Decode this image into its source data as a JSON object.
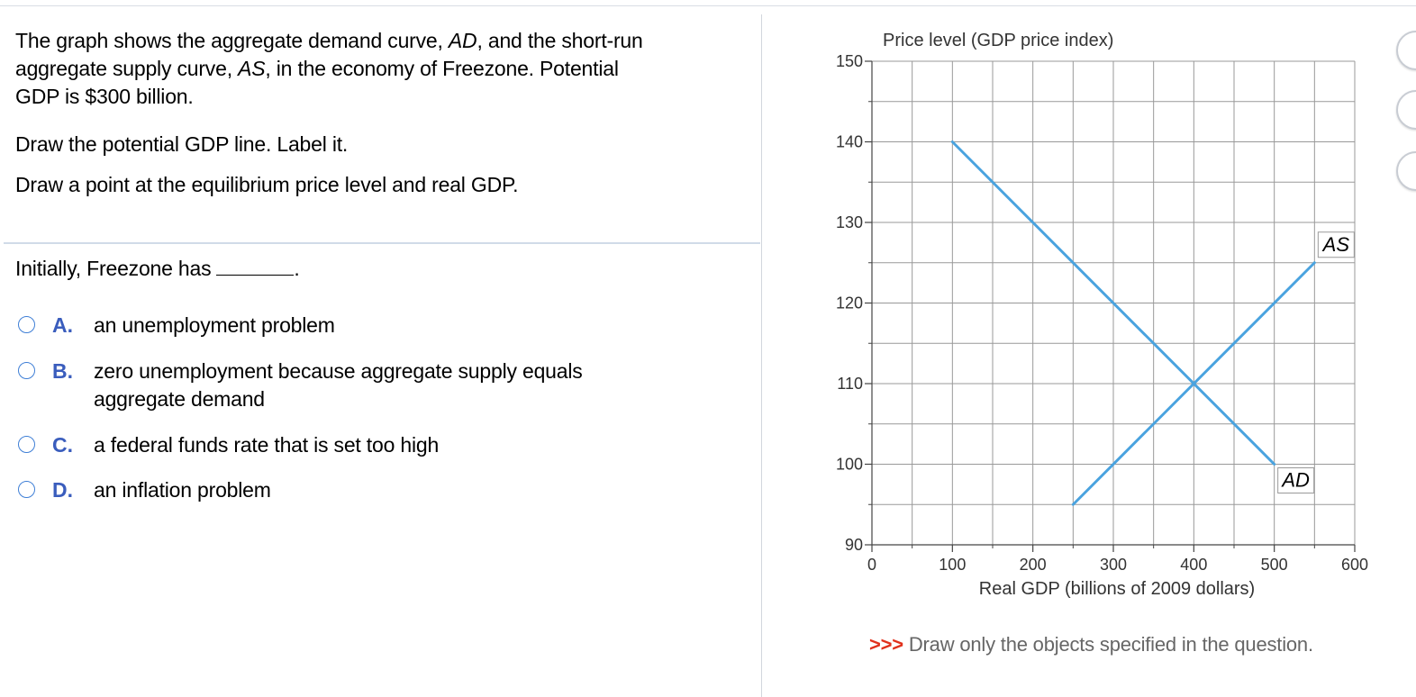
{
  "question": {
    "line1_prefix": "The graph shows the aggregate demand curve, ",
    "line1_ad": "AD",
    "line1_mid": ", and the short-run",
    "line2_prefix": "aggregate supply curve, ",
    "line2_as": "AS",
    "line2_suffix": ", in the economy of Freezone. Potential",
    "line3": "GDP is $300 billion.",
    "instruction1": "Draw the potential GDP line. Label it.",
    "instruction2": "Draw a point at the equilibrium price level and real GDP."
  },
  "prompt": {
    "text": "Initially, Freezone has",
    "suffix": "."
  },
  "choices": [
    {
      "letter": "A.",
      "text": "an unemployment problem"
    },
    {
      "letter": "B.",
      "text": "zero unemployment because aggregate supply equals aggregate demand"
    },
    {
      "letter": "C.",
      "text": "a federal funds rate that is set too high"
    },
    {
      "letter": "D.",
      "text": "an inflation problem"
    }
  ],
  "chart_data": {
    "type": "line",
    "ylabel": "Price level (GDP price index)",
    "xlabel": "Real GDP (billions of 2009 dollars)",
    "xlim": [
      0,
      600
    ],
    "ylim": [
      90,
      150
    ],
    "x_ticks": [
      0,
      100,
      200,
      300,
      400,
      500,
      600
    ],
    "y_ticks": [
      90,
      100,
      110,
      120,
      130,
      140,
      150
    ],
    "grid": true,
    "series": [
      {
        "name": "AD",
        "points": [
          [
            100,
            140
          ],
          [
            500,
            100
          ]
        ],
        "color": "#4aa3df"
      },
      {
        "name": "AS",
        "points": [
          [
            250,
            95
          ],
          [
            550,
            125
          ]
        ],
        "color": "#4aa3df"
      }
    ]
  },
  "footer": {
    "arrows": ">>>",
    "text": " Draw only the objects specified in the question."
  },
  "side_tools": [
    "tool-1",
    "tool-2",
    "tool-3"
  ]
}
